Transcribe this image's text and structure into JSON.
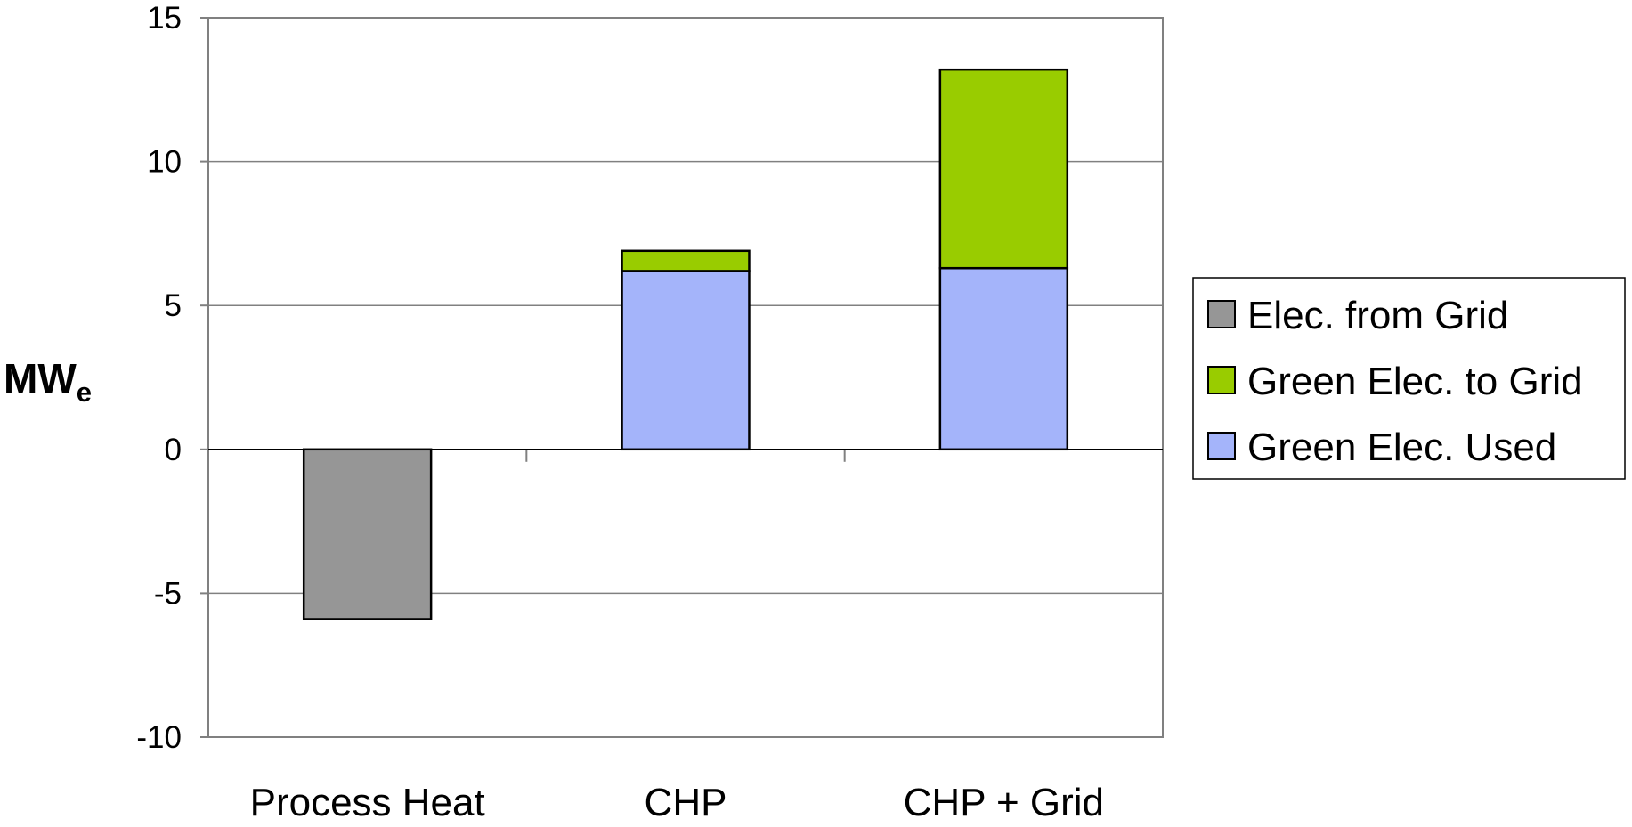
{
  "chart_data": {
    "type": "bar",
    "stacked": true,
    "categories": [
      "Process Heat",
      "CHP",
      "CHP + Grid"
    ],
    "series": [
      {
        "name": "Elec. from Grid",
        "values": [
          -5.9,
          0,
          0
        ],
        "color": "#969696"
      },
      {
        "name": "Green Elec. Used",
        "values": [
          0,
          6.2,
          6.3
        ],
        "color": "#a4b4fa"
      },
      {
        "name": "Green Elec. to Grid",
        "values": [
          0,
          0.7,
          6.9
        ],
        "color": "#99cc00"
      }
    ],
    "legend_order": [
      "Elec. from Grid",
      "Green Elec. to Grid",
      "Green Elec. Used"
    ],
    "legend_position": "right",
    "ylabel": {
      "main": "MW",
      "subscript": "e"
    },
    "xlabel": "",
    "ylim": [
      -10,
      15
    ],
    "yticks": [
      15,
      10,
      5,
      0,
      -5,
      -10
    ],
    "grid": true
  }
}
